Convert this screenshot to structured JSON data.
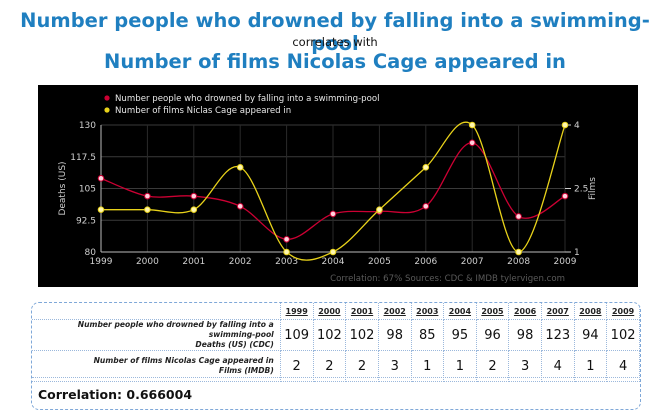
{
  "header": {
    "title_line1": "Number people who drowned by falling into a swimming-pool",
    "title_line2": "correlates with",
    "title_line3": "Number of films Nicolas Cage appeared in"
  },
  "chart_data": {
    "type": "line",
    "x": [
      1999,
      2000,
      2001,
      2002,
      2003,
      2004,
      2005,
      2006,
      2007,
      2008,
      2009
    ],
    "series": [
      {
        "name": "Number people who drowned by falling into a swimming-pool",
        "axis": "left",
        "color": "#cc0033",
        "values": [
          109,
          102,
          102,
          98,
          85,
          95,
          96,
          98,
          123,
          94,
          102
        ]
      },
      {
        "name": "Number of films Niclas Cage appeared in",
        "axis": "right",
        "color": "#e8d21a",
        "values": [
          2,
          2,
          2,
          3,
          1,
          1,
          2,
          3,
          4,
          1,
          4
        ]
      }
    ],
    "ylabel": "Deaths (US)",
    "y2label": "Films",
    "ylim": [
      80,
      130
    ],
    "y2lim": [
      1,
      4
    ],
    "yticks": [
      "80",
      "92.5",
      "105",
      "117.5",
      "130"
    ],
    "y2ticks": [
      "1",
      "2.5",
      "4"
    ],
    "xticks": [
      "1999",
      "2000",
      "2001",
      "2002",
      "2003",
      "2004",
      "2005",
      "2006",
      "2007",
      "2008",
      "2009"
    ],
    "footer": "Correlation: 67%    Sources: CDC & IMDB    tylervigen.com",
    "legend_position": "top-left",
    "background": "#000000"
  },
  "table": {
    "years": [
      "1999",
      "2000",
      "2001",
      "2002",
      "2003",
      "2004",
      "2005",
      "2006",
      "2007",
      "2008",
      "2009"
    ],
    "rows": [
      {
        "label": "Number people who drowned by falling into a swimming-pool",
        "sublabel": "Deaths (US) (CDC)",
        "values": [
          "109",
          "102",
          "102",
          "98",
          "85",
          "95",
          "96",
          "98",
          "123",
          "94",
          "102"
        ]
      },
      {
        "label": "Number of films Nicolas Cage appeared in",
        "sublabel": "Films (IMDB)",
        "values": [
          "2",
          "2",
          "2",
          "3",
          "1",
          "1",
          "2",
          "3",
          "4",
          "1",
          "4"
        ]
      }
    ],
    "correlation_label": "Correlation: 0.666004"
  }
}
